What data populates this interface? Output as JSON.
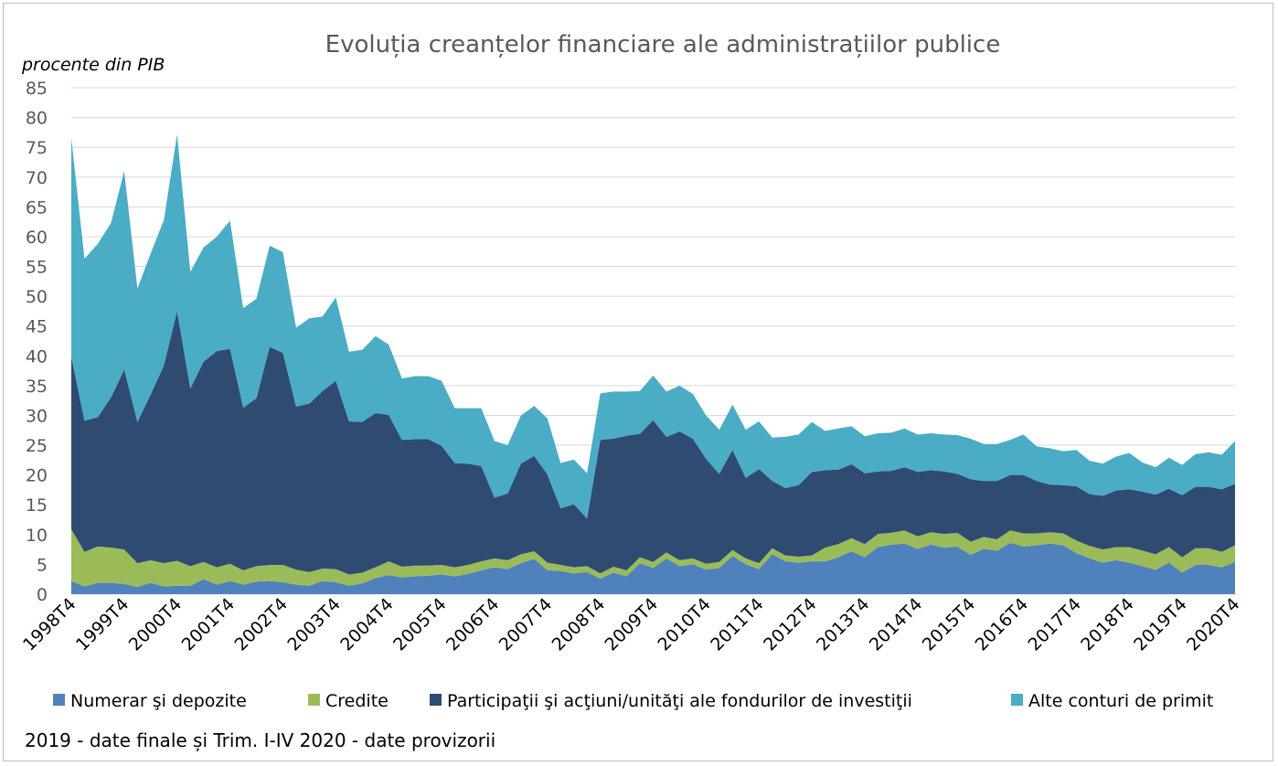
{
  "chart_data": {
    "type": "area",
    "stacked": true,
    "title": "Evoluția creanțelor financiare ale administrațiilor publice",
    "ylabel": "procente din PIB",
    "xlabel": "",
    "ylim": [
      0,
      85
    ],
    "yticks": [
      0,
      5,
      10,
      15,
      20,
      25,
      30,
      35,
      40,
      45,
      50,
      55,
      60,
      65,
      70,
      75,
      80,
      85
    ],
    "grid": true,
    "legend_position": "bottom",
    "x": [
      "1998T4",
      "1999T1",
      "1999T2",
      "1999T3",
      "1999T4",
      "2000T1",
      "2000T2",
      "2000T3",
      "2000T4",
      "2001T1",
      "2001T2",
      "2001T3",
      "2001T4",
      "2002T1",
      "2002T2",
      "2002T3",
      "2002T4",
      "2003T1",
      "2003T2",
      "2003T3",
      "2003T4",
      "2004T1",
      "2004T2",
      "2004T3",
      "2004T4",
      "2005T1",
      "2005T2",
      "2005T3",
      "2005T4",
      "2006T1",
      "2006T2",
      "2006T3",
      "2006T4",
      "2007T1",
      "2007T2",
      "2007T3",
      "2007T4",
      "2008T1",
      "2008T2",
      "2008T3",
      "2008T4",
      "2009T1",
      "2009T2",
      "2009T3",
      "2009T4",
      "2010T1",
      "2010T2",
      "2010T3",
      "2010T4",
      "2011T1",
      "2011T2",
      "2011T3",
      "2011T4",
      "2012T1",
      "2012T2",
      "2012T3",
      "2012T4",
      "2013T1",
      "2013T2",
      "2013T3",
      "2013T4",
      "2014T1",
      "2014T2",
      "2014T3",
      "2014T4",
      "2015T1",
      "2015T2",
      "2015T3",
      "2015T4",
      "2016T1",
      "2016T2",
      "2016T3",
      "2016T4",
      "2017T1",
      "2017T2",
      "2017T3",
      "2017T4",
      "2018T1",
      "2018T2",
      "2018T3",
      "2018T4",
      "2019T1",
      "2019T2",
      "2019T3",
      "2019T4",
      "2020T1",
      "2020T2",
      "2020T3",
      "2020T4"
    ],
    "xtick_labels": [
      "1998T4",
      "1999T4",
      "2000T4",
      "2001T4",
      "2002T4",
      "2003T4",
      "2004T4",
      "2005T4",
      "2006T4",
      "2007T4",
      "2008T4",
      "2009T4",
      "2010T4",
      "2011T4",
      "2012T4",
      "2013T4",
      "2014T4",
      "2015T4",
      "2016T4",
      "2017T4",
      "2018T4",
      "2019T4",
      "2020T4"
    ],
    "series": [
      {
        "name": "Numerar şi depozite",
        "color": "#4f81bd",
        "values": [
          2.2,
          1.3,
          1.9,
          1.9,
          1.7,
          1.2,
          1.9,
          1.3,
          1.4,
          1.4,
          2.5,
          1.6,
          2.2,
          1.6,
          2.1,
          2.2,
          2.0,
          1.6,
          1.4,
          2.2,
          2.0,
          1.4,
          1.8,
          2.7,
          3.2,
          2.8,
          3.0,
          3.1,
          3.3,
          3.0,
          3.4,
          4.0,
          4.5,
          4.2,
          5.2,
          5.9,
          4.0,
          3.9,
          3.5,
          3.7,
          2.6,
          3.6,
          3.0,
          5.2,
          4.4,
          6.0,
          4.7,
          5.0,
          4.1,
          4.4,
          6.4,
          5.0,
          4.2,
          6.7,
          5.5,
          5.3,
          5.5,
          5.5,
          6.2,
          7.2,
          6.2,
          7.9,
          8.3,
          8.5,
          7.6,
          8.3,
          7.8,
          8.0,
          6.6,
          7.6,
          7.3,
          8.6,
          8.0,
          8.2,
          8.5,
          8.2,
          6.9,
          6.0,
          5.3,
          5.7,
          5.3,
          4.7,
          4.1,
          5.3,
          3.6,
          4.9,
          4.9,
          4.5,
          5.4
        ]
      },
      {
        "name": "Credite",
        "color": "#9bbb59",
        "values": [
          8.7,
          5.8,
          6.1,
          5.9,
          5.8,
          4.0,
          3.8,
          3.9,
          4.2,
          3.3,
          2.9,
          2.9,
          2.9,
          2.4,
          2.6,
          2.7,
          2.9,
          2.5,
          2.3,
          2.1,
          2.2,
          1.9,
          1.8,
          1.8,
          2.3,
          1.8,
          1.8,
          1.7,
          1.6,
          1.5,
          1.5,
          1.5,
          1.5,
          1.5,
          1.5,
          1.3,
          1.3,
          1.0,
          1.0,
          1.0,
          0.9,
          1.0,
          1.0,
          1.0,
          1.0,
          1.0,
          1.0,
          1.0,
          1.0,
          1.0,
          1.0,
          1.0,
          1.0,
          1.0,
          1.0,
          1.0,
          1.0,
          2.3,
          2.2,
          2.2,
          2.2,
          2.2,
          2.0,
          2.2,
          2.1,
          2.1,
          2.3,
          2.3,
          2.2,
          2.0,
          1.9,
          2.1,
          2.2,
          2.0,
          1.9,
          2.0,
          2.1,
          2.1,
          2.2,
          2.2,
          2.6,
          2.6,
          2.6,
          2.6,
          2.6,
          2.8,
          2.8,
          2.6,
          2.8
        ]
      },
      {
        "name": "Participaţii şi acţiuni/unităţi ale fondurilor de investiţii",
        "color": "#2f4b72",
        "values": [
          29.0,
          22.0,
          21.7,
          25.2,
          30.2,
          23.7,
          27.8,
          33.2,
          41.9,
          29.8,
          33.6,
          36.3,
          36.1,
          27.3,
          28.2,
          36.6,
          35.6,
          27.4,
          28.3,
          29.8,
          31.6,
          25.7,
          25.3,
          25.9,
          24.6,
          21.3,
          21.2,
          21.2,
          20.0,
          17.5,
          17.0,
          16.0,
          10.2,
          11.2,
          15.2,
          16.0,
          14.8,
          9.5,
          10.6,
          8.0,
          22.4,
          21.5,
          22.6,
          20.7,
          23.8,
          19.4,
          21.6,
          20.1,
          17.6,
          14.8,
          16.8,
          13.5,
          15.8,
          11.3,
          11.3,
          12.0,
          14.0,
          13.0,
          12.5,
          12.4,
          11.9,
          10.5,
          10.4,
          10.6,
          10.8,
          10.4,
          10.5,
          9.9,
          10.5,
          9.4,
          9.8,
          9.3,
          9.8,
          8.8,
          8.0,
          8.1,
          9.1,
          8.7,
          9.0,
          9.5,
          9.7,
          9.9,
          10.0,
          9.8,
          10.4,
          10.3,
          10.3,
          10.5,
          10.3
        ]
      },
      {
        "name": "Alte conturi de primit",
        "color": "#4bacc6",
        "values": [
          36.6,
          27.2,
          29.1,
          29.3,
          33.3,
          22.4,
          23.7,
          24.4,
          29.7,
          19.6,
          19.2,
          19.2,
          21.5,
          16.7,
          16.7,
          17.0,
          16.9,
          13.2,
          14.3,
          12.5,
          14.0,
          11.7,
          12.1,
          12.9,
          11.8,
          10.3,
          10.6,
          10.6,
          10.9,
          9.2,
          9.3,
          9.7,
          9.5,
          8.1,
          8.1,
          8.4,
          9.4,
          7.6,
          7.5,
          7.6,
          7.8,
          7.9,
          7.4,
          7.2,
          7.5,
          7.6,
          7.7,
          7.5,
          7.3,
          7.4,
          7.6,
          8.1,
          8.0,
          7.3,
          8.6,
          8.5,
          8.4,
          6.6,
          6.9,
          6.4,
          6.2,
          6.4,
          6.4,
          6.5,
          6.3,
          6.2,
          6.2,
          6.5,
          6.8,
          6.2,
          6.2,
          5.9,
          6.8,
          5.8,
          6.1,
          5.7,
          6.1,
          5.6,
          5.4,
          5.7,
          6.1,
          4.9,
          4.6,
          5.2,
          5.1,
          5.5,
          5.8,
          5.8,
          7.2
        ]
      }
    ]
  },
  "footnote": "2019 - date finale și Trim. I-IV 2020 - date provizorii"
}
